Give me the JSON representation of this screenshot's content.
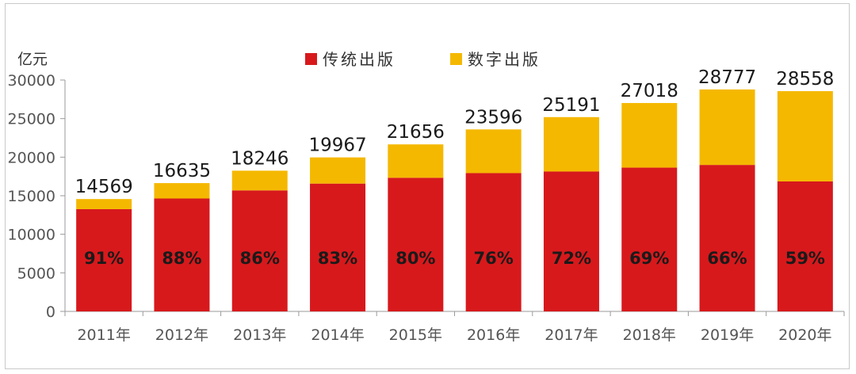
{
  "chart_data": {
    "type": "bar",
    "stacked": true,
    "unit_label": "亿元",
    "categories": [
      "2011年",
      "2012年",
      "2013年",
      "2014年",
      "2015年",
      "2016年",
      "2017年",
      "2018年",
      "2019年",
      "2020年"
    ],
    "totals": [
      14569,
      16635,
      18246,
      19967,
      21656,
      23596,
      25191,
      27018,
      28777,
      28558
    ],
    "traditional_share_labels": [
      "91%",
      "88%",
      "86%",
      "83%",
      "80%",
      "76%",
      "72%",
      "69%",
      "66%",
      "59%"
    ],
    "series": [
      {
        "name": "传统出版",
        "color": "#d7191c",
        "values": [
          13258,
          14639,
          15692,
          16573,
          17325,
          17933,
          18138,
          18642,
          18993,
          16849
        ]
      },
      {
        "name": "数字出版",
        "color": "#f5b800",
        "values": [
          1311,
          1996,
          2554,
          3394,
          4331,
          5663,
          7053,
          8376,
          9784,
          11709
        ]
      }
    ],
    "ylim": [
      0,
      30000
    ],
    "yticks": [
      0,
      5000,
      10000,
      15000,
      20000,
      25000,
      30000
    ],
    "legend_position": "top-center"
  }
}
